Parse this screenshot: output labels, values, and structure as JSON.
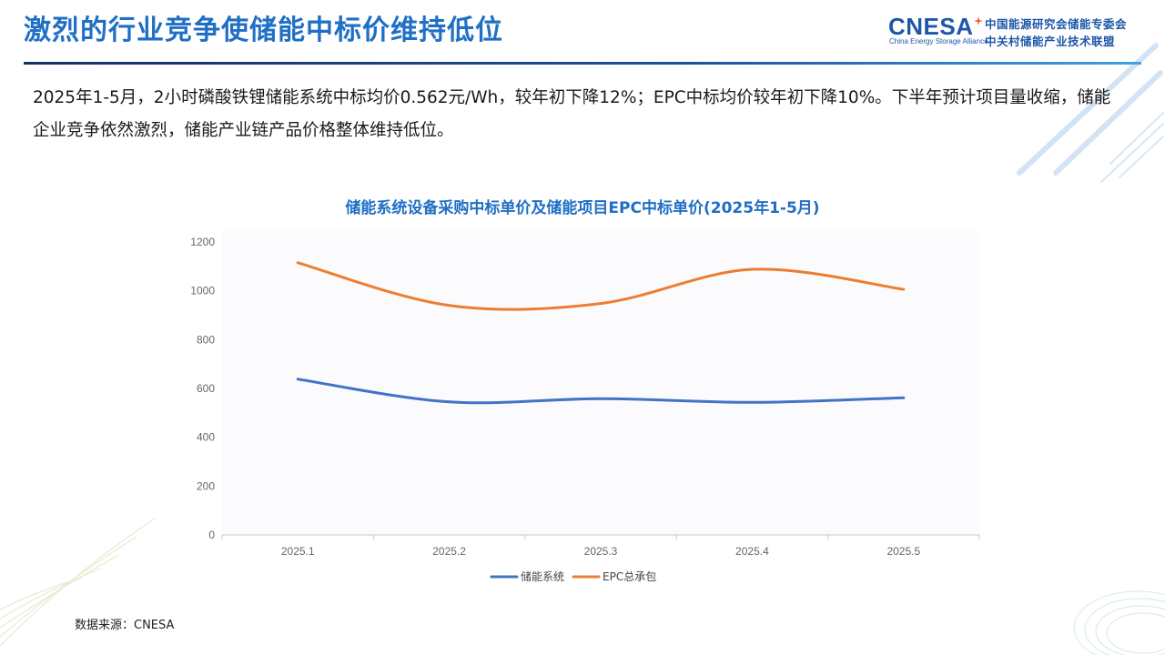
{
  "header": {
    "title": "激烈的行业竞争使储能中标价维持低位",
    "logo": {
      "mark": "CNESA",
      "english": "China Energy Storage Alliance",
      "cn_line1": "中国能源研究会储能专委会",
      "cn_line2": "中关村储能产业技术联盟"
    }
  },
  "summary": "2025年1-5月，2小时磷酸铁锂储能系统中标均价0.562元/Wh，较年初下降12%；EPC中标均价较年初下降10%。下半年预计项目量收缩，储能企业竞争依然激烈，储能产业链产品价格整体维持低位。",
  "source": "数据来源：CNESA",
  "colors": {
    "title": "#1f6fc5",
    "series_system": "#4472c4",
    "series_epc": "#ed7d31"
  },
  "chart_data": {
    "type": "line",
    "title": "储能系统设备采购中标单价及储能项目EPC中标单价(2025年1-5月)",
    "categories": [
      "2025.1",
      "2025.2",
      "2025.3",
      "2025.4",
      "2025.5"
    ],
    "series": [
      {
        "name": "储能系统",
        "values": [
          638,
          545,
          558,
          543,
          562
        ]
      },
      {
        "name": "EPC总承包",
        "values": [
          1115,
          940,
          948,
          1088,
          1006
        ]
      }
    ],
    "ylim": [
      0,
      1200
    ],
    "yticks": [
      0,
      200,
      400,
      600,
      800,
      1000,
      1200
    ],
    "grid": false,
    "smooth": true,
    "legend": "bottom"
  }
}
